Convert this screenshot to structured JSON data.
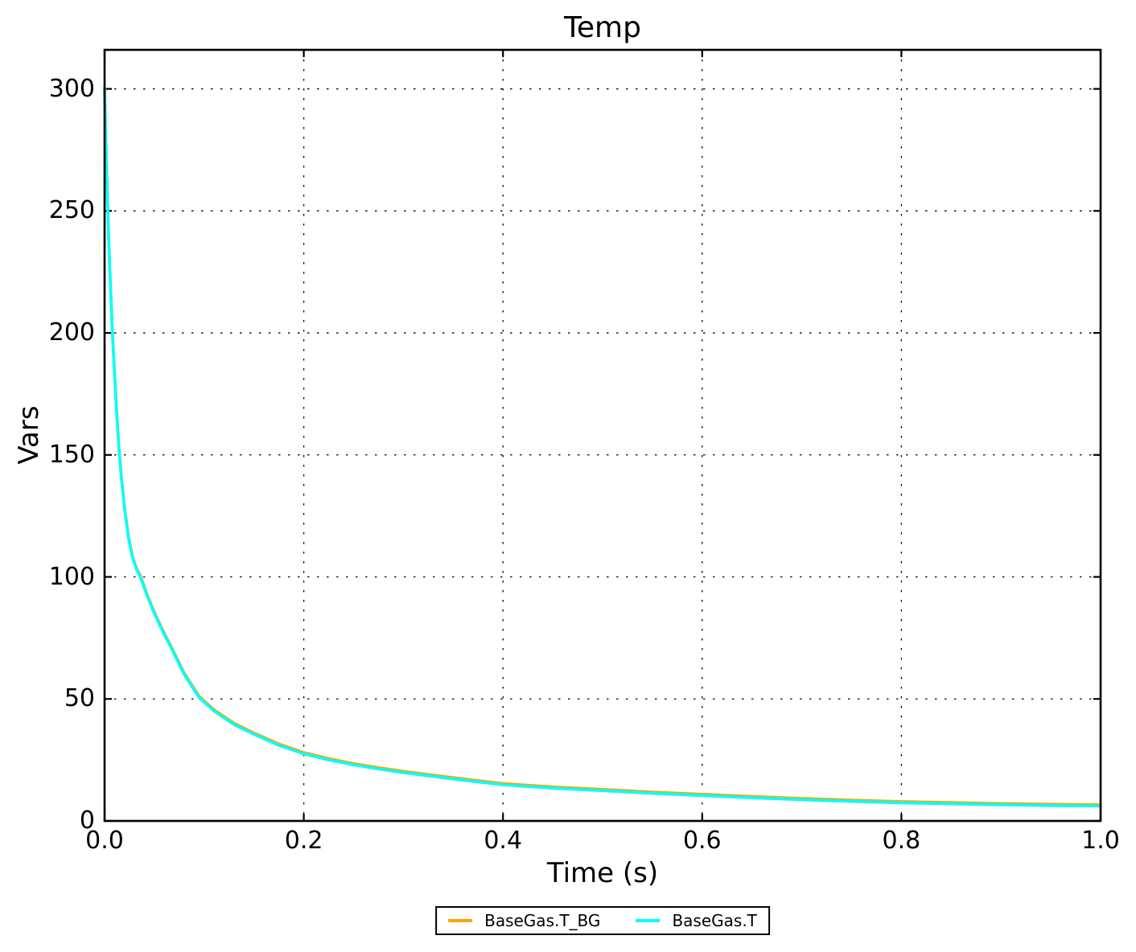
{
  "chart_data": {
    "type": "line",
    "title": "Temp",
    "xlabel": "Time (s)",
    "ylabel": "Vars",
    "xlim": [
      0.0,
      1.0
    ],
    "ylim": [
      0,
      316
    ],
    "xticks": [
      0.0,
      0.2,
      0.4,
      0.6,
      0.8,
      1.0
    ],
    "xtick_labels": [
      "0.0",
      "0.2",
      "0.4",
      "0.6",
      "0.8",
      "1.0"
    ],
    "yticks": [
      0,
      50,
      100,
      150,
      200,
      250,
      300
    ],
    "ytick_labels": [
      "0",
      "50",
      "100",
      "150",
      "200",
      "250",
      "300"
    ],
    "grid": "dotted",
    "grid_color": "#000000",
    "background_color": "#ffffff",
    "legend_position": "bottom-center-outside",
    "x": [
      0,
      0.001,
      0.002,
      0.003,
      0.004,
      0.005,
      0.006,
      0.008,
      0.01,
      0.012,
      0.0145,
      0.017,
      0.02,
      0.024,
      0.028,
      0.032,
      0.036,
      0.042,
      0.05,
      0.058,
      0.068,
      0.08,
      0.095,
      0.11,
      0.13,
      0.15,
      0.175,
      0.2,
      0.225,
      0.25,
      0.275,
      0.3,
      0.35,
      0.4,
      0.45,
      0.5,
      0.55,
      0.6,
      0.65,
      0.7,
      0.75,
      0.8,
      0.85,
      0.9,
      0.95,
      1.0
    ],
    "series": [
      {
        "name": "BaseGas.T_BG",
        "color": "#FFA500",
        "values": [
          300,
          283,
          267,
          253,
          240,
          228,
          218,
          199,
          183,
          168,
          152,
          140,
          128,
          116,
          108,
          103,
          100,
          93,
          85,
          78,
          70,
          60,
          50.5,
          45,
          39.5,
          35.5,
          31,
          27.5,
          25,
          23,
          21.3,
          19.8,
          17.2,
          14.8,
          13.4,
          12.4,
          11.3,
          10.4,
          9.5,
          8.7,
          8.0,
          7.4,
          7.0,
          6.6,
          6.3,
          6.1
        ]
      },
      {
        "name": "BaseGas.T",
        "color": "#00FFFF",
        "values": [
          300,
          283,
          267,
          253,
          240,
          228,
          218,
          199,
          183,
          168,
          152,
          140,
          128,
          116,
          108,
          103,
          100,
          93,
          85,
          78,
          70,
          60,
          50.5,
          45,
          39.5,
          35.5,
          31,
          27.5,
          25,
          23,
          21.3,
          19.8,
          17.2,
          14.8,
          13.4,
          12.4,
          11.3,
          10.4,
          9.5,
          8.7,
          8.0,
          7.4,
          7.0,
          6.6,
          6.3,
          6.1
        ]
      }
    ]
  }
}
